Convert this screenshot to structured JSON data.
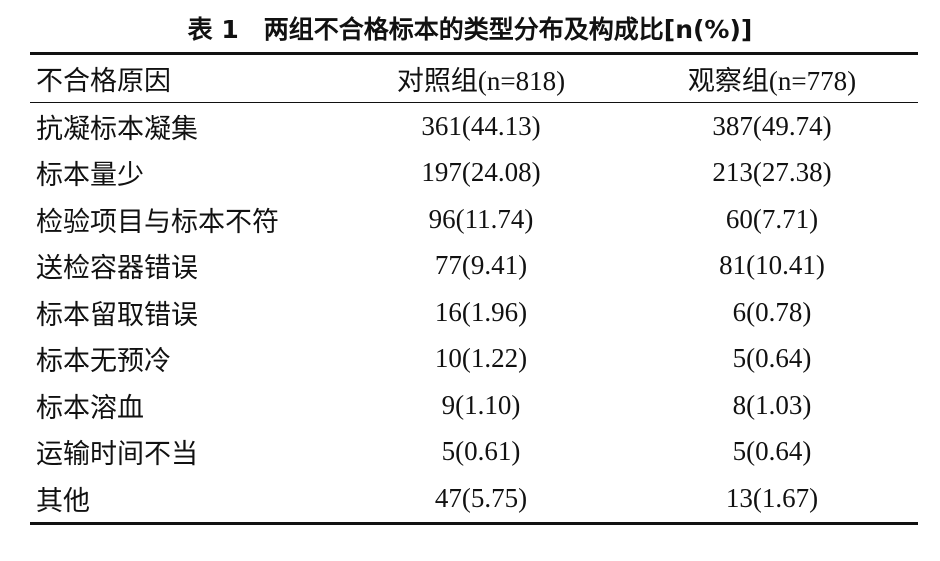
{
  "title": "表 1　两组不合格标本的类型分布及构成比[n(%)]",
  "table": {
    "header": [
      "不合格原因",
      "对照组(n=818)",
      "观察组(n=778)"
    ],
    "rows": [
      [
        "抗凝标本凝集",
        "361(44.13)",
        "387(49.74)"
      ],
      [
        "标本量少",
        "197(24.08)",
        "213(27.38)"
      ],
      [
        "检验项目与标本不符",
        "96(11.74)",
        "60(7.71)"
      ],
      [
        "送检容器错误",
        "77(9.41)",
        "81(10.41)"
      ],
      [
        "标本留取错误",
        "16(1.96)",
        "6(0.78)"
      ],
      [
        "标本无预冷",
        "10(1.22)",
        "5(0.64)"
      ],
      [
        "标本溶血",
        "9(1.10)",
        "8(1.03)"
      ],
      [
        "运输时间不当",
        "5(0.61)",
        "5(0.64)"
      ],
      [
        "其他",
        "47(5.75)",
        "13(1.67)"
      ]
    ]
  }
}
